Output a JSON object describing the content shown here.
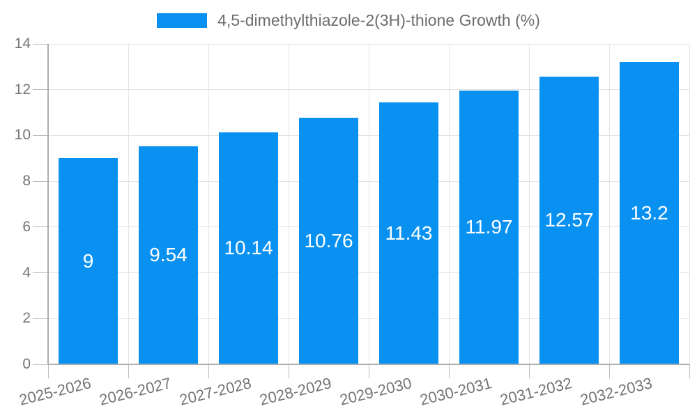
{
  "colors": {
    "bar": "#0991f2",
    "grid": "#e4e4e4",
    "axis": "#adadad",
    "tick": "#bdbdbd",
    "axis_text": "#757575",
    "legend_text": "#6d6d6d",
    "value_text": "#ffffff",
    "background": "#ffffff"
  },
  "chart_data": {
    "type": "bar",
    "title": "",
    "xlabel": "",
    "ylabel": "",
    "series_name": "4,5-dimethylthiazole-2(3H)-thione Growth (%)",
    "categories": [
      "2025-2026",
      "2026-2027",
      "2027-2028",
      "2028-2029",
      "2029-2030",
      "2030-2031",
      "2031-2032",
      "2032-2033"
    ],
    "values": [
      9,
      9.54,
      10.14,
      10.76,
      11.43,
      11.97,
      12.57,
      13.2
    ],
    "ylim": [
      0,
      14
    ],
    "yticks": [
      0,
      2,
      4,
      6,
      8,
      10,
      12,
      14
    ],
    "grid": true,
    "legend_position": "top",
    "value_labels_inside_bars": true
  }
}
